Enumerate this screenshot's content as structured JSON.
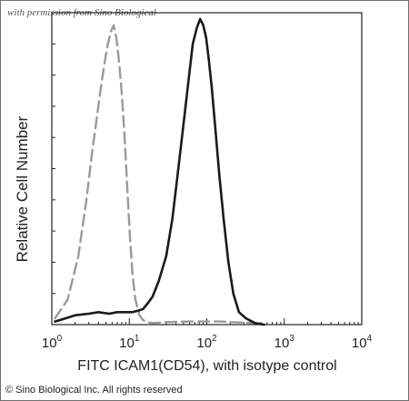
{
  "watermark": "with permission from Sino Biological",
  "copyright": "© Sino Biological Inc. All rights reserved",
  "chart_data": {
    "type": "line",
    "title": "",
    "xlabel": "FITC  ICAM1(CD54), with isotype control",
    "ylabel": "Relative Cell Number",
    "x_scale": "log",
    "xlim": [
      1,
      10000
    ],
    "ylim": [
      0,
      100
    ],
    "x_ticks": [
      {
        "value": 1,
        "base": "10",
        "exp": "0"
      },
      {
        "value": 10,
        "base": "10",
        "exp": "1"
      },
      {
        "value": 100,
        "base": "10",
        "exp": "2"
      },
      {
        "value": 1000,
        "base": "10",
        "exp": "3"
      },
      {
        "value": 10000,
        "base": "10",
        "exp": "4"
      }
    ],
    "legend": "none",
    "grid": false,
    "series": [
      {
        "role": "isotype control",
        "color": "#9a9a9a",
        "dashed": true,
        "x": [
          1.1,
          1.6,
          2.2,
          2.8,
          3.3,
          3.8,
          4.3,
          4.8,
          5.3,
          5.8,
          6.3,
          6.8,
          7.4,
          8.0,
          8.7,
          9.4,
          10.2,
          11.0,
          12.0,
          13.5,
          15.0,
          17.0,
          20.0,
          30.0,
          60.0,
          150.0,
          400.0
        ],
        "y": [
          2,
          8,
          22,
          40,
          55,
          66,
          76,
          84,
          90,
          94,
          96,
          92,
          84,
          74,
          60,
          44,
          28,
          16,
          8,
          3,
          1.5,
          0.8,
          0.5,
          0.8,
          1,
          1,
          0.5
        ]
      },
      {
        "role": "ICAM1 (CD54)",
        "color": "#1a1a1a",
        "dashed": false,
        "x": [
          1.1,
          1.5,
          2.0,
          3.0,
          4.0,
          5.5,
          7.0,
          9.0,
          11.0,
          13.0,
          15.0,
          17.5,
          20.0,
          24.0,
          30.0,
          36.0,
          42.0,
          50.0,
          58.0,
          66.0,
          74.0,
          82.0,
          90.0,
          98.0,
          106.0,
          116.0,
          128.0,
          145.0,
          165.0,
          190.0,
          220.0,
          260.0,
          320.0,
          420.0,
          550.0
        ],
        "y": [
          1,
          2,
          3,
          3.5,
          4,
          3.5,
          4,
          4,
          4,
          4.5,
          5,
          7,
          9,
          14,
          22,
          34,
          48,
          64,
          78,
          90,
          95,
          98,
          96,
          92,
          85,
          76,
          64,
          48,
          34,
          20,
          10,
          4,
          2,
          0.5,
          0
        ]
      }
    ]
  }
}
